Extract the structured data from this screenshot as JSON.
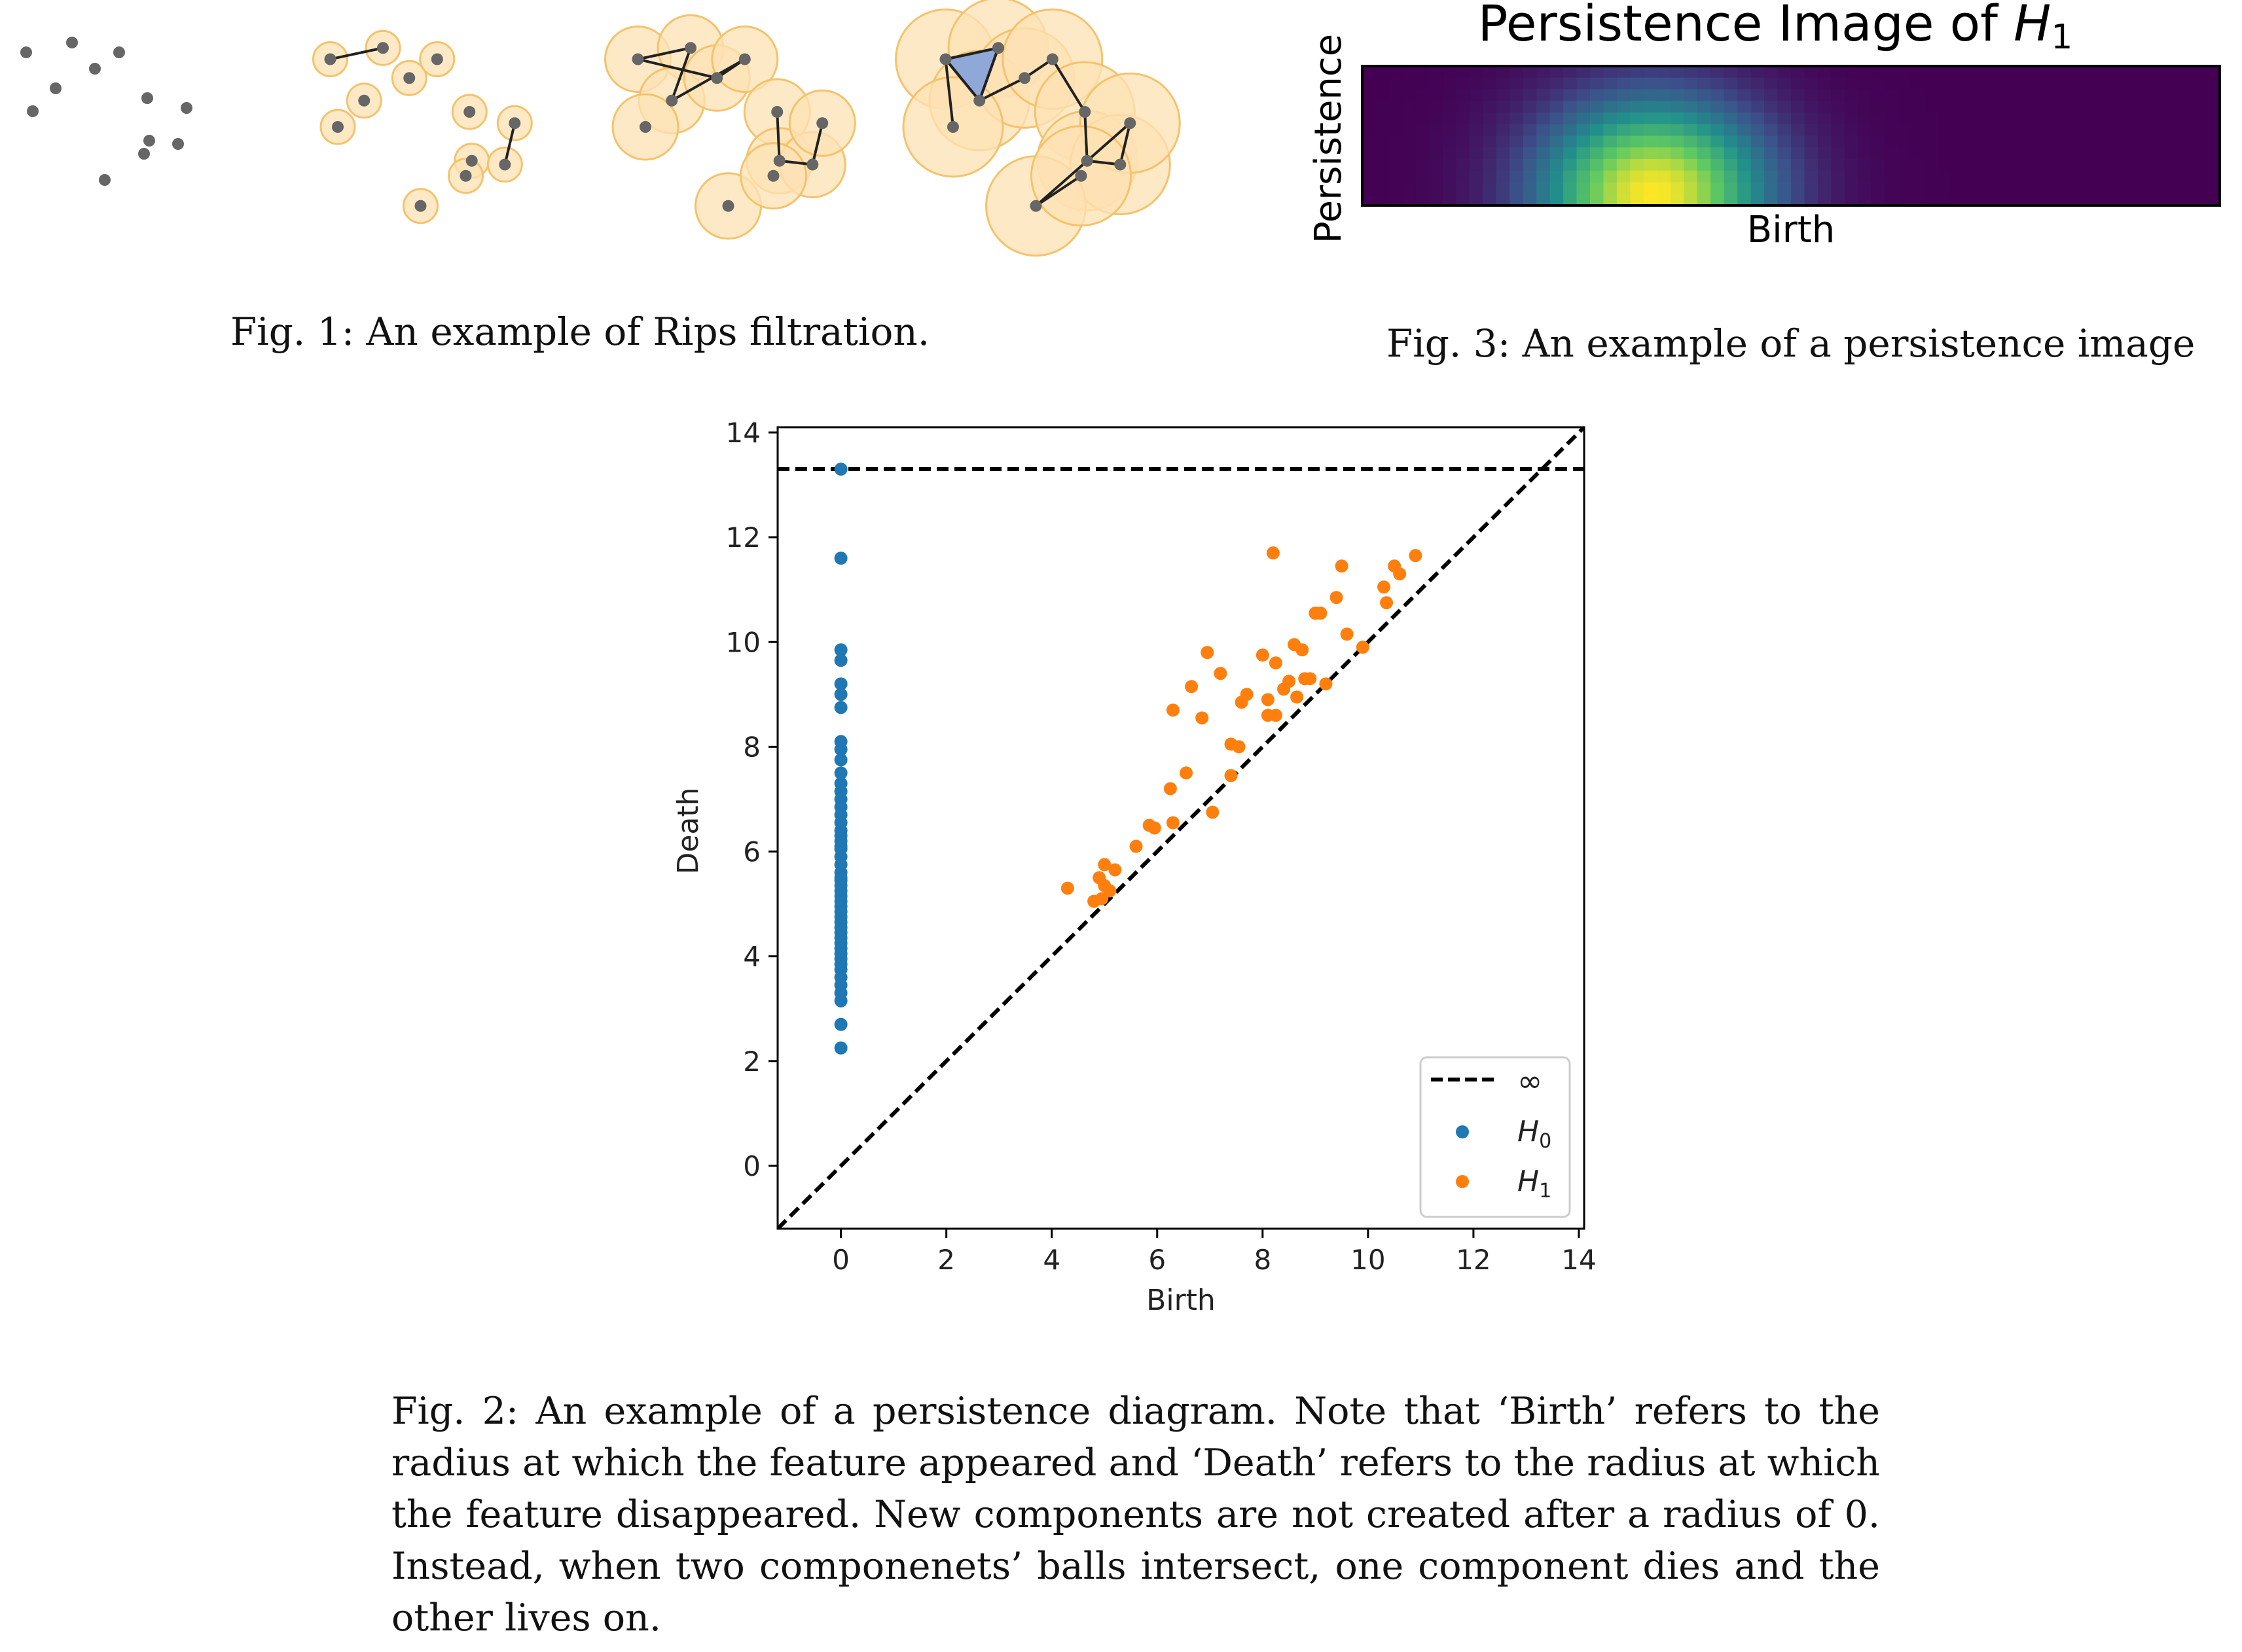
{
  "figures": {
    "fig1": {
      "caption": "Fig. 1: An example of Rips filtration.",
      "panels": [
        {
          "stage": "points only",
          "edges": [],
          "triangles": []
        },
        {
          "stage": "small balls",
          "edges": [
            [
              0,
              1
            ],
            [
              7,
              8
            ]
          ],
          "triangles": []
        },
        {
          "stage": "medium balls",
          "edges": [
            [
              0,
              1
            ],
            [
              0,
              3
            ],
            [
              1,
              2
            ],
            [
              3,
              4
            ],
            [
              2,
              4
            ],
            [
              5,
              6
            ],
            [
              6,
              7
            ],
            [
              7,
              8
            ]
          ],
          "triangles": []
        },
        {
          "stage": "large balls",
          "edges": [
            [
              0,
              1
            ],
            [
              0,
              2
            ],
            [
              1,
              2
            ],
            [
              2,
              3
            ],
            [
              3,
              4
            ],
            [
              4,
              5
            ],
            [
              5,
              6
            ],
            [
              6,
              7
            ],
            [
              7,
              8
            ],
            [
              8,
              9
            ],
            [
              9,
              10
            ],
            [
              0,
              11
            ]
          ],
          "triangles": [
            [
              0,
              1,
              2
            ]
          ]
        }
      ],
      "colors": {
        "point": "#666666",
        "ball_fill": "#fde2b4",
        "ball_edge": "#f5c26b",
        "edge": "#222222",
        "triangle": "#8fa8d8"
      }
    },
    "fig2": {
      "caption": "Fig. 2: An example of a persistence diagram. Note that ‘Birth’ refers to the radius at which the feature appeared and ‘Death’ refers to the radius at which the feature disappeared. New components are not created after a radius of 0. Instead, when two componenets’ balls intersect, one component dies and the other lives on."
    },
    "fig3": {
      "caption": "Fig. 3: An example of a persistence image",
      "heatmap_center": [
        0.34,
        0.92
      ],
      "heatmap_spread": [
        0.095,
        0.48
      ]
    }
  },
  "chart_data": {
    "type": "scatter",
    "xlabel": "Birth",
    "ylabel": "Death",
    "xlim": [
      -1.2,
      14.1
    ],
    "ylim": [
      -1.2,
      14.1
    ],
    "xticks": [
      "0",
      "2",
      "4",
      "6",
      "8",
      "10",
      "12",
      "14"
    ],
    "yticks": [
      "0",
      "2",
      "4",
      "6",
      "8",
      "10",
      "12",
      "14"
    ],
    "grid": false,
    "legend": "lower-right",
    "infinity_line": {
      "label": "∞",
      "y": 13.3,
      "style": "dashed",
      "color": "#000000"
    },
    "diagonal": {
      "style": "dashed",
      "color": "#000000"
    },
    "series": [
      {
        "name": "H0",
        "color": "#1f77b4",
        "x": [
          0,
          0,
          0,
          0,
          0,
          0,
          0,
          0,
          0,
          0,
          0,
          0,
          0,
          0,
          0,
          0,
          0,
          0,
          0,
          0,
          0,
          0,
          0,
          0,
          0,
          0,
          0,
          0,
          0,
          0,
          0,
          0,
          0,
          0,
          0,
          0,
          0,
          0,
          0,
          0,
          0,
          0,
          0,
          0,
          0,
          0,
          0,
          0,
          0,
          0
        ],
        "y": [
          13.3,
          11.6,
          9.85,
          9.65,
          9.2,
          9.0,
          8.75,
          8.1,
          7.95,
          7.75,
          7.5,
          7.3,
          7.15,
          7.0,
          6.85,
          6.7,
          6.55,
          6.4,
          6.3,
          6.2,
          6.05,
          5.9,
          5.75,
          5.6,
          5.45,
          5.35,
          5.25,
          5.15,
          5.05,
          4.95,
          4.85,
          4.75,
          4.65,
          4.55,
          4.45,
          4.35,
          4.25,
          4.15,
          4.05,
          3.95,
          3.85,
          3.75,
          3.6,
          3.45,
          3.3,
          3.15,
          2.7,
          2.25,
          5.5,
          6.1
        ]
      },
      {
        "name": "H1",
        "color": "#ff7f0e",
        "x": [
          4.3,
          4.8,
          4.95,
          5.0,
          5.2,
          5.1,
          4.9,
          5.0,
          5.6,
          5.85,
          5.95,
          6.25,
          6.3,
          6.55,
          6.3,
          6.65,
          7.05,
          6.85,
          6.95,
          7.4,
          7.2,
          7.55,
          7.4,
          7.6,
          8.0,
          7.7,
          8.2,
          8.1,
          8.25,
          8.6,
          8.4,
          8.75,
          8.5,
          8.8,
          8.65,
          8.9,
          9.2,
          9.1,
          9.0,
          9.4,
          9.5,
          9.6,
          9.9,
          10.3,
          10.35,
          10.5,
          10.6,
          10.9,
          8.1,
          8.25
        ],
        "y": [
          5.3,
          5.05,
          5.1,
          5.35,
          5.65,
          5.25,
          5.5,
          5.75,
          6.1,
          6.5,
          6.45,
          7.2,
          6.55,
          7.5,
          8.7,
          9.15,
          6.75,
          8.55,
          9.8,
          7.45,
          9.4,
          8.0,
          8.05,
          8.85,
          9.75,
          9.0,
          11.7,
          8.6,
          8.6,
          9.95,
          9.1,
          9.85,
          9.25,
          9.3,
          8.95,
          9.3,
          9.2,
          10.55,
          10.55,
          10.85,
          11.45,
          10.15,
          9.9,
          11.05,
          10.75,
          11.45,
          11.3,
          11.65,
          8.9,
          9.6
        ]
      }
    ]
  },
  "legend": {
    "infinity_label": "∞",
    "h0_base": "H",
    "h0_sub": "0",
    "h1_base": "H",
    "h1_sub": "1"
  },
  "persistence_image": {
    "title_base": "Persistence Image of ",
    "title_var": "H",
    "title_sub": "1",
    "xlabel": "Birth",
    "ylabel": "Persistence"
  }
}
